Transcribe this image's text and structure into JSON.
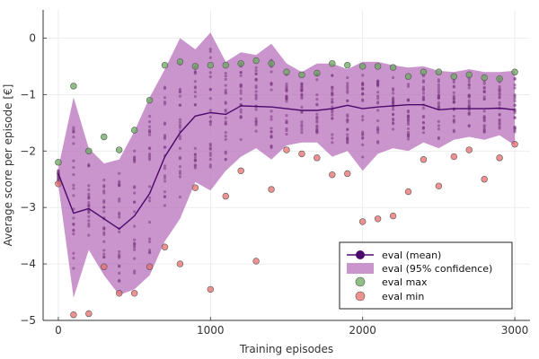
{
  "chart_data": {
    "type": "line",
    "xlabel": "Training episodes",
    "ylabel": "Average score per episode [€]",
    "xlim": [
      -100,
      3100
    ],
    "ylim": [
      -5,
      0.5
    ],
    "x_ticks": [
      0,
      1000,
      2000,
      3000
    ],
    "y_ticks": [
      -5,
      -4,
      -3,
      -2,
      -1,
      0
    ],
    "x_tick_labels": [
      "0",
      "1000",
      "2000",
      "3000"
    ],
    "y_tick_labels": [
      "−5",
      "−4",
      "−3",
      "−2",
      "−1",
      "0"
    ],
    "grid": true,
    "legend_position": "bottom-right",
    "x": [
      0,
      100,
      200,
      300,
      400,
      500,
      600,
      700,
      800,
      900,
      1000,
      1100,
      1200,
      1300,
      1400,
      1500,
      1600,
      1700,
      1800,
      1900,
      2000,
      2100,
      2200,
      2300,
      2400,
      2500,
      2600,
      2700,
      2800,
      2900,
      3000
    ],
    "series": [
      {
        "name": "eval (mean)",
        "color": "#4b0a6b",
        "values": [
          -2.4,
          -3.1,
          -3.02,
          -3.2,
          -3.38,
          -3.15,
          -2.75,
          -2.1,
          -1.68,
          -1.38,
          -1.32,
          -1.35,
          -1.2,
          -1.21,
          -1.22,
          -1.25,
          -1.28,
          -1.28,
          -1.25,
          -1.19,
          -1.25,
          -1.22,
          -1.2,
          -1.18,
          -1.18,
          -1.27,
          -1.25,
          -1.25,
          -1.25,
          -1.24,
          -1.27
        ]
      },
      {
        "name": "eval (95% confidence)",
        "color": "#b366b8",
        "upper": [
          -2.3,
          -1.05,
          -1.95,
          -2.22,
          -2.15,
          -1.65,
          -1.05,
          -0.55,
          0.0,
          -0.2,
          0.1,
          -0.42,
          -0.25,
          -0.3,
          -0.1,
          -0.45,
          -0.6,
          -0.45,
          -0.45,
          -0.55,
          -0.42,
          -0.42,
          -0.48,
          -0.52,
          -0.5,
          -0.58,
          -0.6,
          -0.55,
          -0.6,
          -0.6,
          -0.58
        ],
        "lower": [
          -2.6,
          -4.6,
          -3.75,
          -4.2,
          -4.55,
          -4.45,
          -4.2,
          -3.6,
          -3.2,
          -2.55,
          -2.7,
          -2.35,
          -2.1,
          -1.95,
          -2.15,
          -1.9,
          -1.85,
          -1.85,
          -2.1,
          -2.0,
          -2.35,
          -2.05,
          -1.95,
          -2.0,
          -1.85,
          -1.95,
          -1.8,
          -1.75,
          -1.8,
          -1.72,
          -1.9
        ]
      },
      {
        "name": "eval max",
        "color": "#6aaa5e",
        "values": [
          -2.2,
          -0.85,
          -2.0,
          -1.75,
          -1.98,
          -1.63,
          -1.1,
          -0.48,
          -0.42,
          -0.5,
          -0.48,
          -0.48,
          -0.45,
          -0.4,
          -0.45,
          -0.6,
          -0.65,
          -0.62,
          -0.45,
          -0.48,
          -0.5,
          -0.5,
          -0.52,
          -0.68,
          -0.6,
          -0.6,
          -0.68,
          -0.65,
          -0.7,
          -0.72,
          -0.6
        ]
      },
      {
        "name": "eval min",
        "color": "#e86c6c",
        "values": [
          -2.58,
          -4.9,
          -4.88,
          -4.05,
          -4.52,
          -4.52,
          -4.05,
          -3.7,
          -4.0,
          -2.65,
          -4.45,
          -2.8,
          -2.35,
          -3.95,
          -2.68,
          -1.98,
          -2.05,
          -2.12,
          -2.42,
          -2.4,
          -3.25,
          -3.2,
          -3.15,
          -2.72,
          -2.15,
          -2.62,
          -2.1,
          -1.98,
          -2.5,
          -2.12,
          -1.88
        ]
      }
    ]
  }
}
